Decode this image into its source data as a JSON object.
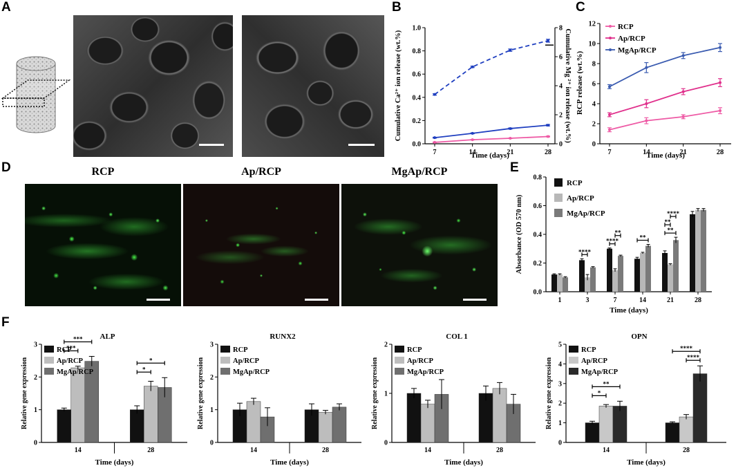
{
  "panels": {
    "A": {
      "label": "A"
    },
    "B": {
      "label": "B"
    },
    "C": {
      "label": "C"
    },
    "D": {
      "label": "D",
      "titles": [
        "RCP",
        "Ap/RCP",
        "MgAp/RCP"
      ]
    },
    "E": {
      "label": "E"
    },
    "F": {
      "label": "F"
    }
  },
  "colors": {
    "ca": "#1f3fc0",
    "mg": "#1f3fc0",
    "rcp": "#ee5aa5",
    "ap": "#e0308c",
    "mgap": "#3a5bb0"
  },
  "chart_data": [
    {
      "id": "B",
      "type": "line",
      "xlabel": "Time (days)",
      "ylabel": "Cumulative Ca²⁺ ion release (wt.%)",
      "y2label": "Cumulative Mg ²⁺ ion release (wt.%)",
      "x": [
        7,
        14,
        21,
        28
      ],
      "xticks": [
        "7",
        "14",
        "21",
        "28"
      ],
      "ylim": [
        0,
        1.0
      ],
      "yticks": [
        "0.0",
        "0.2",
        "0.4",
        "0.6",
        "0.8",
        "1.0"
      ],
      "y2lim": [
        0,
        8
      ],
      "y2ticks": [
        "0",
        "2",
        "4",
        "6",
        "8"
      ],
      "series": [
        {
          "style": "dashed",
          "axis": "right",
          "values": [
            3.4,
            5.3,
            6.45,
            7.1
          ],
          "err": [
            0.05,
            0.05,
            0.08,
            0.1
          ]
        },
        {
          "style": "solid",
          "axis": "right",
          "values": [
            0.42,
            0.72,
            1.05,
            1.28
          ],
          "err": [
            0.03,
            0.03,
            0.04,
            0.05
          ]
        },
        {
          "style": "solid-pink",
          "axis": "right",
          "values": [
            0.1,
            0.28,
            0.38,
            0.5
          ],
          "err": [
            0.02,
            0.02,
            0.02,
            0.03
          ]
        }
      ]
    },
    {
      "id": "C",
      "type": "line",
      "xlabel": "Time (days)",
      "ylabel": "RCP release (wt.%)",
      "x": [
        7,
        14,
        21,
        28
      ],
      "xticks": [
        "7",
        "14",
        "21",
        "28"
      ],
      "ylim": [
        0,
        12
      ],
      "yticks": [
        "0",
        "2",
        "4",
        "6",
        "8",
        "10",
        "12"
      ],
      "legend": [
        "RCP",
        "Ap/RCP",
        "MgAp/RCP"
      ],
      "series": [
        {
          "name": "RCP",
          "values": [
            1.4,
            2.3,
            2.7,
            3.3
          ],
          "err": [
            0.2,
            0.3,
            0.2,
            0.3
          ]
        },
        {
          "name": "Ap/RCP",
          "values": [
            2.9,
            4.0,
            5.2,
            6.1
          ],
          "err": [
            0.2,
            0.4,
            0.3,
            0.4
          ]
        },
        {
          "name": "MgAp/RCP",
          "values": [
            5.7,
            7.6,
            8.8,
            9.6
          ],
          "err": [
            0.2,
            0.5,
            0.3,
            0.4
          ]
        }
      ]
    },
    {
      "id": "E",
      "type": "bar",
      "xlabel": "Time (days)",
      "ylabel": "Absorbance (OD 570 nm)",
      "categories": [
        "1",
        "3",
        "7",
        "14",
        "21",
        "28"
      ],
      "ylim": [
        0,
        0.8
      ],
      "yticks": [
        "0.0",
        "0.2",
        "0.4",
        "0.6",
        "0.8"
      ],
      "legend": [
        "RCP",
        "Ap/RCP",
        "MgAp/RCP"
      ],
      "series": [
        {
          "name": "RCP",
          "values": [
            0.12,
            0.22,
            0.3,
            0.23,
            0.27,
            0.54
          ],
          "err": [
            0.005,
            0.01,
            0.005,
            0.01,
            0.015,
            0.02
          ]
        },
        {
          "name": "Ap/RCP",
          "values": [
            0.12,
            0.1,
            0.15,
            0.27,
            0.19,
            0.57
          ],
          "err": [
            0.005,
            0.02,
            0.01,
            0.005,
            0.005,
            0.01
          ]
        },
        {
          "name": "MgAp/RCP",
          "values": [
            0.1,
            0.17,
            0.25,
            0.32,
            0.36,
            0.57
          ],
          "err": [
            0.005,
            0.005,
            0.005,
            0.01,
            0.02,
            0.01
          ]
        }
      ],
      "significance": [
        {
          "cat": 1,
          "from": 0,
          "to": 1,
          "label": "****"
        },
        {
          "cat": 2,
          "from": 0,
          "to": 1,
          "label": "****"
        },
        {
          "cat": 2,
          "from": 1,
          "to": 2,
          "label": "**"
        },
        {
          "cat": 3,
          "from": 0,
          "to": 2,
          "label": "**"
        },
        {
          "cat": 4,
          "from": 0,
          "to": 2,
          "label": "**"
        },
        {
          "cat": 4,
          "from": 0,
          "to": 1,
          "label": "**"
        },
        {
          "cat": 4,
          "from": 1,
          "to": 2,
          "label": "****"
        }
      ]
    },
    {
      "id": "F1",
      "type": "bar",
      "title": "ALP",
      "xlabel": "Time (days)",
      "ylabel": "Relative gene expression",
      "categories": [
        "14",
        "28"
      ],
      "ylim": [
        0,
        3
      ],
      "yticks": [
        "0",
        "1",
        "2",
        "3"
      ],
      "legend": [
        "RCP",
        "Ap/RCP",
        "MgAp/RCP"
      ],
      "series": [
        {
          "name": "RCP",
          "values": [
            1.0,
            1.0
          ],
          "err": [
            0.05,
            0.12
          ]
        },
        {
          "name": "Ap/RCP",
          "values": [
            2.28,
            1.72
          ],
          "err": [
            0.05,
            0.15
          ]
        },
        {
          "name": "MgAp/RCP",
          "values": [
            2.48,
            1.68
          ],
          "err": [
            0.15,
            0.3
          ]
        }
      ],
      "significance": [
        {
          "cat": 0,
          "from": 0,
          "to": 1,
          "label": "***"
        },
        {
          "cat": 0,
          "from": 0,
          "to": 2,
          "label": "***"
        },
        {
          "cat": 1,
          "from": 0,
          "to": 1,
          "label": "*"
        },
        {
          "cat": 1,
          "from": 0,
          "to": 2,
          "label": "*"
        }
      ]
    },
    {
      "id": "F2",
      "type": "bar",
      "title": "RUNX2",
      "xlabel": "Time (days)",
      "ylabel": "Relative gene expression",
      "categories": [
        "14",
        "28"
      ],
      "ylim": [
        0,
        3
      ],
      "yticks": [
        "0",
        "1",
        "2",
        "3"
      ],
      "legend": [
        "RCP",
        "Ap/RCP",
        "MgAp/RCP"
      ],
      "series": [
        {
          "name": "RCP",
          "values": [
            1.0,
            1.0
          ],
          "err": [
            0.2,
            0.18
          ]
        },
        {
          "name": "Ap/RCP",
          "values": [
            1.25,
            0.92
          ],
          "err": [
            0.1,
            0.06
          ]
        },
        {
          "name": "MgAp/RCP",
          "values": [
            0.78,
            1.08
          ],
          "err": [
            0.28,
            0.1
          ]
        }
      ]
    },
    {
      "id": "F3",
      "type": "bar",
      "title": "COL 1",
      "xlabel": "Time (days)",
      "ylabel": "Relative gene expression",
      "categories": [
        "14",
        "28"
      ],
      "ylim": [
        0,
        2
      ],
      "yticks": [
        "0",
        "1",
        "2"
      ],
      "legend": [
        "RCP",
        "Ap/RCP",
        "MgAp/RCP"
      ],
      "series": [
        {
          "name": "RCP",
          "values": [
            1.0,
            1.0
          ],
          "err": [
            0.1,
            0.15
          ]
        },
        {
          "name": "Ap/RCP",
          "values": [
            0.78,
            1.1
          ],
          "err": [
            0.08,
            0.12
          ]
        },
        {
          "name": "MgAp/RCP",
          "values": [
            0.98,
            0.78
          ],
          "err": [
            0.3,
            0.2
          ]
        }
      ]
    },
    {
      "id": "F4",
      "type": "bar",
      "title": "OPN",
      "xlabel": "Time (days)",
      "ylabel": "Relative gene expression",
      "categories": [
        "14",
        "28"
      ],
      "ylim": [
        0,
        5
      ],
      "yticks": [
        "0",
        "1",
        "2",
        "3",
        "4",
        "5"
      ],
      "legend": [
        "RCP",
        "Ap/RCP",
        "MgAp/RCP"
      ],
      "series": [
        {
          "name": "RCP",
          "values": [
            1.0,
            1.0
          ],
          "err": [
            0.08,
            0.05
          ]
        },
        {
          "name": "Ap/RCP",
          "values": [
            1.85,
            1.3
          ],
          "err": [
            0.08,
            0.12
          ]
        },
        {
          "name": "MgAp/RCP",
          "values": [
            1.85,
            3.5
          ],
          "err": [
            0.25,
            0.4
          ]
        }
      ],
      "significance": [
        {
          "cat": 0,
          "from": 0,
          "to": 1,
          "label": "*"
        },
        {
          "cat": 0,
          "from": 0,
          "to": 2,
          "label": "**"
        },
        {
          "cat": 1,
          "from": 1,
          "to": 2,
          "label": "****"
        },
        {
          "cat": 1,
          "from": 0,
          "to": 2,
          "label": "****"
        }
      ]
    }
  ]
}
